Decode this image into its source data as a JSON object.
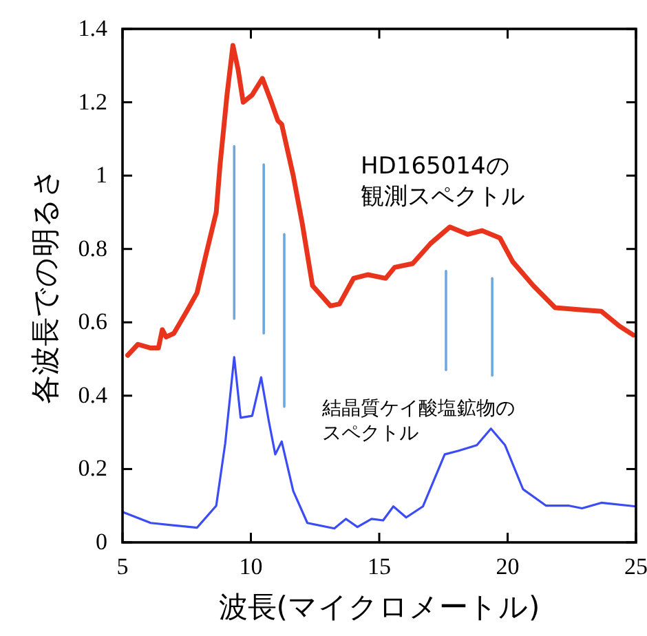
{
  "chart_data": {
    "type": "line",
    "xlabel": "波長(マイクロメートル)",
    "ylabel": "各波長での明るさ",
    "xlim": [
      5,
      25
    ],
    "xticks": [
      5,
      10,
      15,
      20,
      25
    ],
    "ylim": [
      0,
      1.4
    ],
    "yticks": [
      0,
      0.2,
      0.4,
      0.6,
      0.8,
      1,
      1.2,
      1.4
    ],
    "annotations": [
      "HD165014の観測スペクトル",
      "結晶質ケイ酸塩鉱物のスペクトル"
    ],
    "series": [
      {
        "color": "#e8341c",
        "x": [
          5.2,
          5.6,
          6.1,
          6.4,
          6.55,
          6.7,
          7.0,
          7.5,
          7.9,
          8.27,
          8.65,
          8.8,
          9.07,
          9.3,
          9.5,
          9.7,
          10.05,
          10.45,
          10.8,
          11.05,
          11.2,
          11.65,
          12.0,
          12.4,
          13.1,
          13.45,
          14.0,
          14.55,
          15.25,
          15.6,
          16.3,
          17.0,
          17.75,
          18.45,
          19.0,
          19.7,
          20.2,
          21.0,
          21.85,
          22.75,
          23.65,
          24.35,
          24.9
        ],
        "values": [
          0.51,
          0.54,
          0.53,
          0.53,
          0.58,
          0.56,
          0.57,
          0.63,
          0.68,
          0.79,
          0.9,
          1.03,
          1.22,
          1.355,
          1.29,
          1.2,
          1.22,
          1.265,
          1.2,
          1.15,
          1.14,
          1.0,
          0.87,
          0.7,
          0.645,
          0.65,
          0.72,
          0.73,
          0.72,
          0.75,
          0.76,
          0.815,
          0.86,
          0.84,
          0.85,
          0.83,
          0.765,
          0.7,
          0.64,
          0.635,
          0.63,
          0.59,
          0.565
        ]
      },
      {
        "color": "#3b4cf5",
        "x": [
          5.0,
          6.1,
          7.9,
          8.65,
          9.0,
          9.35,
          9.6,
          10.05,
          10.4,
          10.7,
          10.95,
          11.2,
          11.65,
          12.2,
          13.25,
          13.7,
          14.15,
          14.7,
          15.15,
          15.55,
          16.05,
          16.7,
          17.55,
          18.1,
          18.8,
          19.35,
          19.9,
          20.6,
          21.5,
          22.4,
          22.9,
          23.65,
          25.0
        ],
        "values": [
          0.083,
          0.053,
          0.04,
          0.1,
          0.27,
          0.505,
          0.34,
          0.345,
          0.45,
          0.33,
          0.24,
          0.275,
          0.14,
          0.053,
          0.038,
          0.064,
          0.042,
          0.064,
          0.06,
          0.098,
          0.068,
          0.098,
          0.24,
          0.25,
          0.265,
          0.31,
          0.265,
          0.145,
          0.1,
          0.1,
          0.093,
          0.108,
          0.098
        ]
      },
      {
        "type": "line",
        "color": "#6fa8dc",
        "x": [
          9.35,
          9.35
        ],
        "values": [
          1.08,
          0.61
        ]
      },
      {
        "type": "line",
        "color": "#6fa8dc",
        "x": [
          10.5,
          10.5
        ],
        "values": [
          1.03,
          0.57
        ]
      },
      {
        "type": "line",
        "color": "#6fa8dc",
        "x": [
          11.3,
          11.3
        ],
        "values": [
          0.84,
          0.37
        ]
      },
      {
        "type": "line",
        "color": "#6fa8dc",
        "x": [
          17.6,
          17.6
        ],
        "values": [
          0.74,
          0.47
        ]
      },
      {
        "type": "line",
        "color": "#6fa8dc",
        "x": [
          19.4,
          19.4
        ],
        "values": [
          0.72,
          0.455
        ]
      }
    ]
  }
}
